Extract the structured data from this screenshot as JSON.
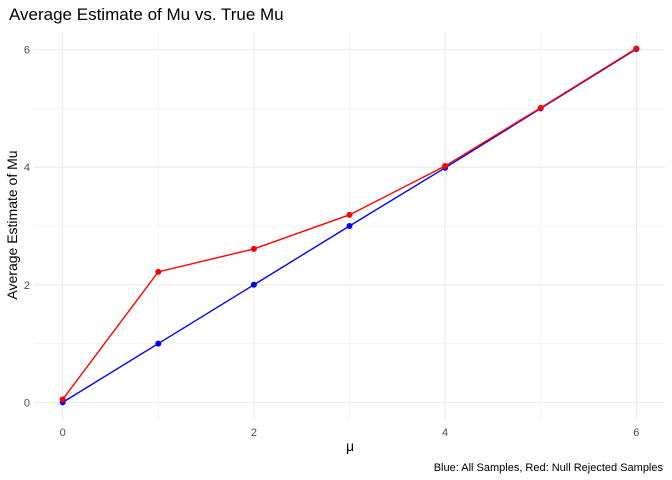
{
  "chart_data": {
    "type": "line",
    "title": "Average Estimate of Mu vs. True Mu",
    "xlabel": "μ",
    "ylabel": "Average Estimate of Mu",
    "caption": "Blue: All Samples, Red: Null Rejected Samples",
    "x": [
      0,
      1,
      2,
      3,
      4,
      5,
      6
    ],
    "xlim": [
      -0.3,
      6.3
    ],
    "ylim": [
      -0.3,
      6.3
    ],
    "x_ticks": [
      0,
      2,
      4,
      6
    ],
    "y_ticks": [
      0,
      2,
      4,
      6
    ],
    "x_tick_labels": [
      "0",
      "2",
      "4",
      "6"
    ],
    "y_tick_labels": [
      "0",
      "2",
      "4",
      "6"
    ],
    "grid": true,
    "legend": "none",
    "series": [
      {
        "color": "#0000ff",
        "values": [
          0.0,
          1.0,
          2.0,
          3.0,
          3.99,
          5.0,
          6.01
        ]
      },
      {
        "color": "#ff0000",
        "values": [
          0.05,
          2.22,
          2.61,
          3.19,
          4.02,
          5.01,
          6.02
        ]
      }
    ]
  }
}
